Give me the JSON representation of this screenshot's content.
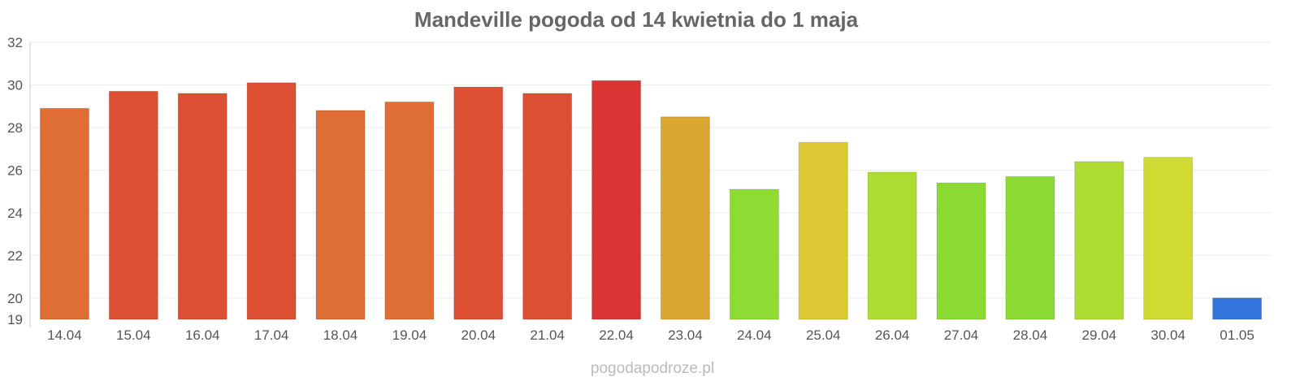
{
  "chart_data": {
    "type": "bar",
    "title": "Mandeville pogoda od 14 kwietnia do 1 maja",
    "xlabel": "",
    "ylabel": "",
    "ylim": [
      19,
      32
    ],
    "yticks": [
      19,
      20,
      22,
      24,
      26,
      28,
      30,
      32
    ],
    "grid": true,
    "categories": [
      "14.04",
      "15.04",
      "16.04",
      "17.04",
      "18.04",
      "19.04",
      "20.04",
      "21.04",
      "22.04",
      "23.04",
      "24.04",
      "25.04",
      "26.04",
      "27.04",
      "28.04",
      "29.04",
      "30.04",
      "01.05"
    ],
    "values": [
      28.9,
      29.7,
      29.6,
      30.1,
      28.8,
      29.2,
      29.9,
      29.6,
      30.2,
      28.5,
      25.1,
      27.3,
      25.9,
      25.4,
      25.7,
      26.4,
      26.6,
      20.0
    ],
    "colors": [
      "#de6e33",
      "#dd4f33",
      "#dd4f33",
      "#dd4f33",
      "#de6e33",
      "#de6e33",
      "#dd4f33",
      "#dd4f33",
      "#da3535",
      "#dca632",
      "#8edb34",
      "#dcc832",
      "#afdc33",
      "#8cdb33",
      "#8cdb33",
      "#afdc33",
      "#cfdb33",
      "#3375dc"
    ]
  },
  "credit": "pogodapodroze.pl"
}
